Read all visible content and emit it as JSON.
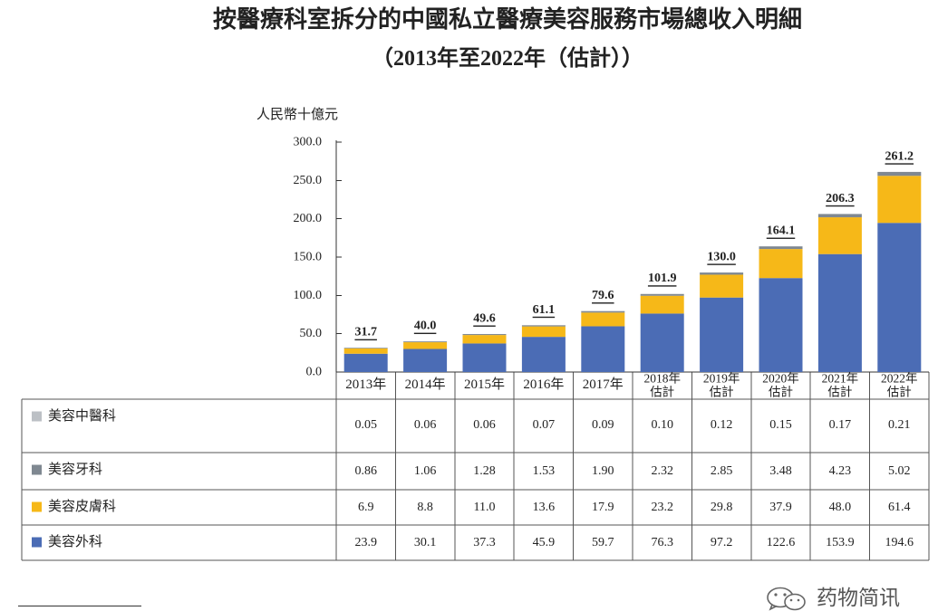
{
  "chart_data": {
    "type": "bar",
    "stacked": true,
    "title": "按醫療科室拆分的中國私立醫療美容服務市場總收入明細",
    "subtitle": "（2013年至2022年（估計））",
    "xlabel": "",
    "ylabel": "人民幣十億元",
    "ylim": [
      0,
      300
    ],
    "yticks": [
      "0.0",
      "50.0",
      "100.0",
      "150.0",
      "200.0",
      "250.0",
      "300.0"
    ],
    "grid": false,
    "legend": "left",
    "categories": [
      "2013年",
      "2014年",
      "2015年",
      "2016年",
      "2017年",
      "2018年\n估計",
      "2019年\n估計",
      "2020年\n估計",
      "2021年\n估計",
      "2022年\n估計"
    ],
    "totals": [
      31.7,
      40.0,
      49.6,
      61.1,
      79.6,
      101.9,
      130.0,
      164.1,
      206.3,
      261.2
    ],
    "series": [
      {
        "name": "美容中醫科",
        "color": "#bcc0c5",
        "values": [
          0.05,
          0.06,
          0.06,
          0.07,
          0.09,
          0.1,
          0.12,
          0.15,
          0.17,
          0.21
        ]
      },
      {
        "name": "美容牙科",
        "color": "#7f8891",
        "values": [
          0.86,
          1.06,
          1.28,
          1.53,
          1.9,
          2.32,
          2.85,
          3.48,
          4.23,
          5.02
        ]
      },
      {
        "name": "美容皮膚科",
        "color": "#f6b818",
        "values": [
          6.9,
          8.8,
          11.0,
          13.6,
          17.9,
          23.2,
          29.8,
          37.9,
          48.0,
          61.4
        ]
      },
      {
        "name": "美容外科",
        "color": "#4b6cb5",
        "values": [
          23.9,
          30.1,
          37.3,
          45.9,
          59.7,
          76.3,
          97.2,
          122.6,
          153.9,
          194.6
        ]
      }
    ]
  },
  "watermark": {
    "text": "药物简讯",
    "icon": "wechat-icon"
  }
}
